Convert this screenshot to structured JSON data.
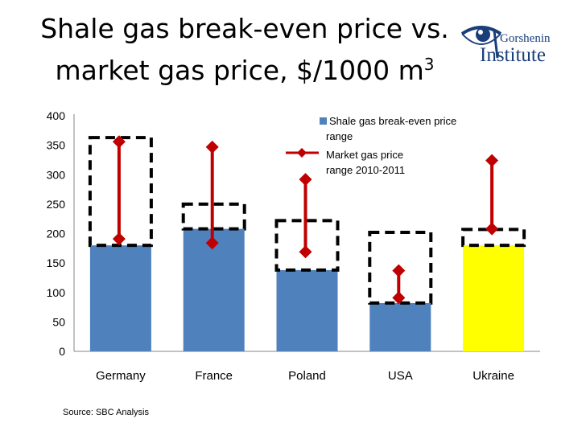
{
  "title_line1": "Shale gas break-even price vs.",
  "title_line2": "market gas price, $/1000 m",
  "title_sup": "3",
  "logo": {
    "small_text": "Gorshenin",
    "big_text": "Institute",
    "icon": "eye-icon"
  },
  "source": "Source: SBC Analysis",
  "colors": {
    "bar": "#4f81bd",
    "ukraine_bar": "#ffff00",
    "market": "#c00000",
    "box": "#000000"
  },
  "chart_data": {
    "type": "bar",
    "categories": [
      "Germany",
      "France",
      "Poland",
      "USA",
      "Ukraine"
    ],
    "bars": [
      180,
      208,
      138,
      82,
      180
    ],
    "breakeven_range": [
      [
        180,
        363
      ],
      [
        208,
        250
      ],
      [
        138,
        222
      ],
      [
        82,
        202
      ],
      [
        180,
        207
      ]
    ],
    "market_range": [
      [
        191,
        356
      ],
      [
        184,
        347
      ],
      [
        169,
        292
      ],
      [
        91,
        137
      ],
      [
        208,
        324
      ]
    ],
    "ylim": [
      0,
      400
    ],
    "yticks": [
      0,
      50,
      100,
      150,
      200,
      250,
      300,
      350,
      400
    ],
    "legend": {
      "bar_label_line1": "Shale gas break-even price",
      "bar_label_line2": "range",
      "market_label_line1": "Market gas price",
      "market_label_line2": "range 2010-2011"
    }
  }
}
